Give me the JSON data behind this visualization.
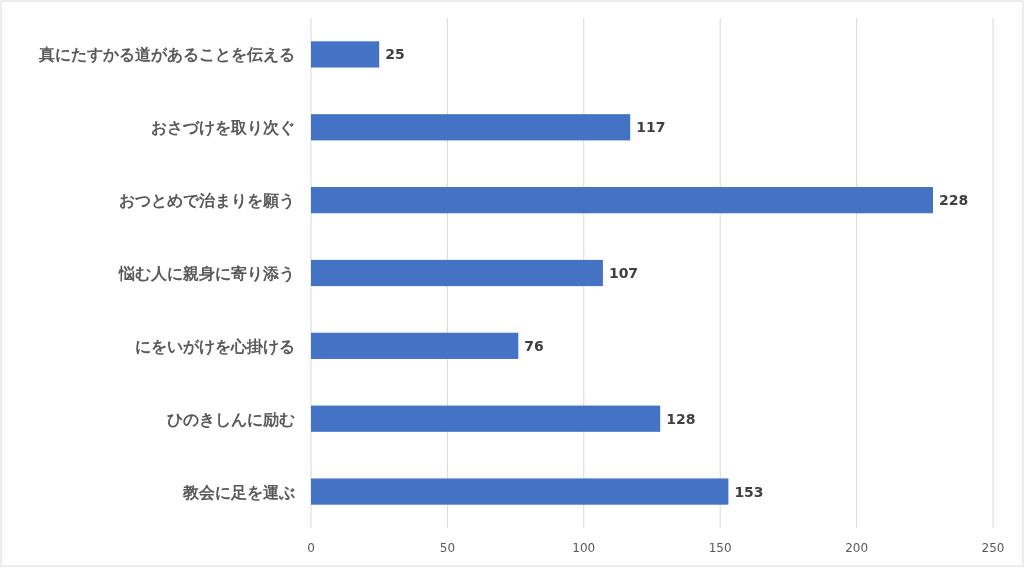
{
  "chart_data": {
    "type": "bar",
    "orientation": "horizontal",
    "categories": [
      "真にたすかる道があることを伝える",
      "おさづけを取り次ぐ",
      "おつとめで治まりを願う",
      "悩む人に親身に寄り添う",
      "にをいがけを心掛ける",
      "ひのきしんに励む",
      "教会に足を運ぶ"
    ],
    "values": [
      25,
      117,
      228,
      107,
      76,
      128,
      153
    ],
    "color": "#4472c4",
    "xlim": [
      0,
      250
    ],
    "xticks": [
      0,
      50,
      100,
      150,
      200,
      250
    ],
    "grid": "x",
    "data_labels": true
  }
}
